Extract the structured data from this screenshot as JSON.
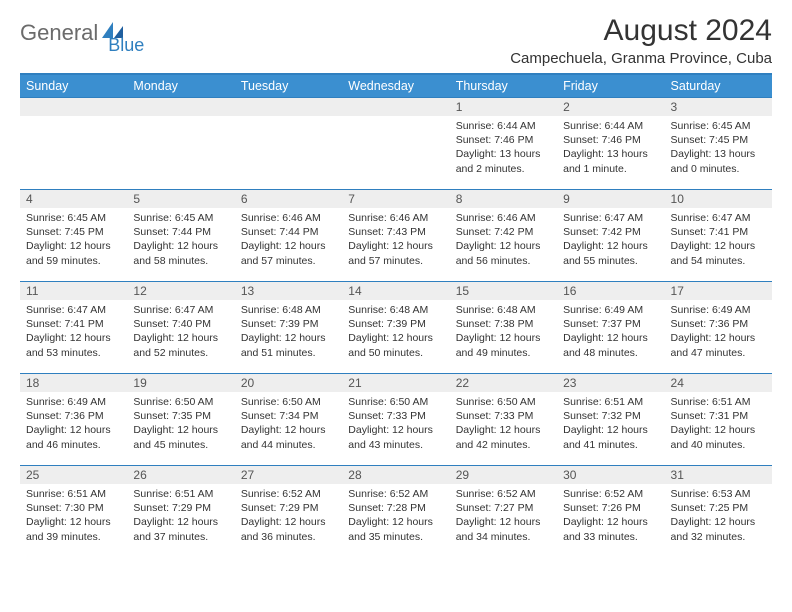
{
  "logo": {
    "part1": "General",
    "part2": "Blue"
  },
  "title": "August 2024",
  "location": "Campechuela, Granma Province, Cuba",
  "colors": {
    "header_bg": "#3b8fd0",
    "header_border": "#2f7fbf",
    "daynum_bg": "#eeeeee",
    "text": "#333333",
    "logo_gray": "#6b6b6b",
    "logo_blue": "#2f7fbf"
  },
  "weekdays": [
    "Sunday",
    "Monday",
    "Tuesday",
    "Wednesday",
    "Thursday",
    "Friday",
    "Saturday"
  ],
  "weeks": [
    [
      null,
      null,
      null,
      null,
      {
        "n": "1",
        "sr": "6:44 AM",
        "ss": "7:46 PM",
        "dl": "13 hours and 2 minutes."
      },
      {
        "n": "2",
        "sr": "6:44 AM",
        "ss": "7:46 PM",
        "dl": "13 hours and 1 minute."
      },
      {
        "n": "3",
        "sr": "6:45 AM",
        "ss": "7:45 PM",
        "dl": "13 hours and 0 minutes."
      }
    ],
    [
      {
        "n": "4",
        "sr": "6:45 AM",
        "ss": "7:45 PM",
        "dl": "12 hours and 59 minutes."
      },
      {
        "n": "5",
        "sr": "6:45 AM",
        "ss": "7:44 PM",
        "dl": "12 hours and 58 minutes."
      },
      {
        "n": "6",
        "sr": "6:46 AM",
        "ss": "7:44 PM",
        "dl": "12 hours and 57 minutes."
      },
      {
        "n": "7",
        "sr": "6:46 AM",
        "ss": "7:43 PM",
        "dl": "12 hours and 57 minutes."
      },
      {
        "n": "8",
        "sr": "6:46 AM",
        "ss": "7:42 PM",
        "dl": "12 hours and 56 minutes."
      },
      {
        "n": "9",
        "sr": "6:47 AM",
        "ss": "7:42 PM",
        "dl": "12 hours and 55 minutes."
      },
      {
        "n": "10",
        "sr": "6:47 AM",
        "ss": "7:41 PM",
        "dl": "12 hours and 54 minutes."
      }
    ],
    [
      {
        "n": "11",
        "sr": "6:47 AM",
        "ss": "7:41 PM",
        "dl": "12 hours and 53 minutes."
      },
      {
        "n": "12",
        "sr": "6:47 AM",
        "ss": "7:40 PM",
        "dl": "12 hours and 52 minutes."
      },
      {
        "n": "13",
        "sr": "6:48 AM",
        "ss": "7:39 PM",
        "dl": "12 hours and 51 minutes."
      },
      {
        "n": "14",
        "sr": "6:48 AM",
        "ss": "7:39 PM",
        "dl": "12 hours and 50 minutes."
      },
      {
        "n": "15",
        "sr": "6:48 AM",
        "ss": "7:38 PM",
        "dl": "12 hours and 49 minutes."
      },
      {
        "n": "16",
        "sr": "6:49 AM",
        "ss": "7:37 PM",
        "dl": "12 hours and 48 minutes."
      },
      {
        "n": "17",
        "sr": "6:49 AM",
        "ss": "7:36 PM",
        "dl": "12 hours and 47 minutes."
      }
    ],
    [
      {
        "n": "18",
        "sr": "6:49 AM",
        "ss": "7:36 PM",
        "dl": "12 hours and 46 minutes."
      },
      {
        "n": "19",
        "sr": "6:50 AM",
        "ss": "7:35 PM",
        "dl": "12 hours and 45 minutes."
      },
      {
        "n": "20",
        "sr": "6:50 AM",
        "ss": "7:34 PM",
        "dl": "12 hours and 44 minutes."
      },
      {
        "n": "21",
        "sr": "6:50 AM",
        "ss": "7:33 PM",
        "dl": "12 hours and 43 minutes."
      },
      {
        "n": "22",
        "sr": "6:50 AM",
        "ss": "7:33 PM",
        "dl": "12 hours and 42 minutes."
      },
      {
        "n": "23",
        "sr": "6:51 AM",
        "ss": "7:32 PM",
        "dl": "12 hours and 41 minutes."
      },
      {
        "n": "24",
        "sr": "6:51 AM",
        "ss": "7:31 PM",
        "dl": "12 hours and 40 minutes."
      }
    ],
    [
      {
        "n": "25",
        "sr": "6:51 AM",
        "ss": "7:30 PM",
        "dl": "12 hours and 39 minutes."
      },
      {
        "n": "26",
        "sr": "6:51 AM",
        "ss": "7:29 PM",
        "dl": "12 hours and 37 minutes."
      },
      {
        "n": "27",
        "sr": "6:52 AM",
        "ss": "7:29 PM",
        "dl": "12 hours and 36 minutes."
      },
      {
        "n": "28",
        "sr": "6:52 AM",
        "ss": "7:28 PM",
        "dl": "12 hours and 35 minutes."
      },
      {
        "n": "29",
        "sr": "6:52 AM",
        "ss": "7:27 PM",
        "dl": "12 hours and 34 minutes."
      },
      {
        "n": "30",
        "sr": "6:52 AM",
        "ss": "7:26 PM",
        "dl": "12 hours and 33 minutes."
      },
      {
        "n": "31",
        "sr": "6:53 AM",
        "ss": "7:25 PM",
        "dl": "12 hours and 32 minutes."
      }
    ]
  ],
  "labels": {
    "sunrise": "Sunrise: ",
    "sunset": "Sunset: ",
    "daylight": "Daylight: "
  }
}
